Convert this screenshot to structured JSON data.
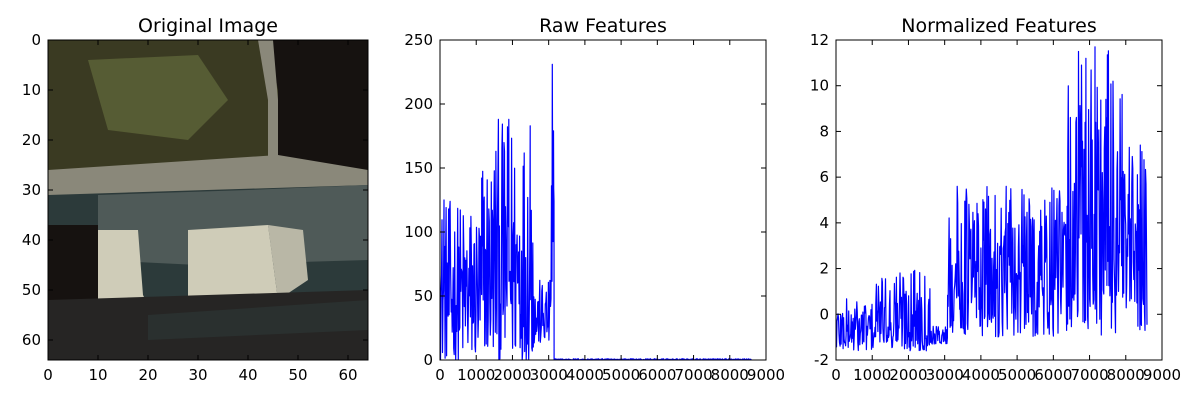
{
  "chart_data": [
    {
      "type": "image",
      "title": "Original Image",
      "xlim": [
        0,
        64
      ],
      "ylim": [
        64,
        0
      ],
      "xticks": [
        0,
        10,
        20,
        30,
        40,
        50,
        60
      ],
      "yticks": [
        0,
        10,
        20,
        30,
        40,
        50,
        60
      ],
      "image_regions": [
        {
          "name": "foliage",
          "color": "#3a3a22"
        },
        {
          "name": "foliage-highlight",
          "color": "#565c34"
        },
        {
          "name": "dark-background",
          "color": "#161210"
        },
        {
          "name": "pole-left",
          "color": "#8a887a"
        },
        {
          "name": "car-body",
          "color": "#2c3a3a"
        },
        {
          "name": "car-roof-edge",
          "color": "#4f5a58"
        },
        {
          "name": "light-panel",
          "color": "#cfccb8"
        },
        {
          "name": "light-panel-right",
          "color": "#b9b7a6"
        },
        {
          "name": "road",
          "color": "#262524"
        },
        {
          "name": "bumper",
          "color": "#2a302f"
        }
      ]
    },
    {
      "type": "line",
      "title": "Raw Features",
      "xlim": [
        0,
        9000
      ],
      "ylim": [
        0,
        250
      ],
      "xticks": [
        0,
        1000,
        2000,
        3000,
        4000,
        5000,
        6000,
        7000,
        8000,
        9000
      ],
      "yticks": [
        0,
        50,
        100,
        150,
        200,
        250
      ],
      "color": "#0000ff",
      "series_profile": [
        {
          "x_range": [
            0,
            1150
          ],
          "min": 0,
          "max": 125
        },
        {
          "x_range": [
            1150,
            1500
          ],
          "min": 5,
          "max": 165
        },
        {
          "x_range": [
            1500,
            2100
          ],
          "min": 0,
          "max": 188
        },
        {
          "x_range": [
            2100,
            2600
          ],
          "min": 0,
          "max": 183
        },
        {
          "x_range": [
            2600,
            3050
          ],
          "min": 12,
          "max": 63
        },
        {
          "x_range": [
            3050,
            3150
          ],
          "min": 0,
          "max": 231
        },
        {
          "x_range": [
            3150,
            8600
          ],
          "min": 0,
          "max": 1
        }
      ],
      "peaks": [
        {
          "x": 110,
          "y": 125
        },
        {
          "x": 1900,
          "y": 188
        },
        {
          "x": 2490,
          "y": 183
        },
        {
          "x": 3100,
          "y": 231
        },
        {
          "x": 3140,
          "y": 134
        }
      ]
    },
    {
      "type": "line",
      "title": "Normalized Features",
      "xlim": [
        0,
        9000
      ],
      "ylim": [
        -2,
        12
      ],
      "xticks": [
        0,
        1000,
        2000,
        3000,
        4000,
        5000,
        6000,
        7000,
        8000,
        9000
      ],
      "yticks": [
        -2,
        0,
        2,
        4,
        6,
        8,
        10,
        12
      ],
      "color": "#0000ff",
      "series_profile": [
        {
          "x_range": [
            0,
            1100
          ],
          "min": -1.6,
          "max": 0.7
        },
        {
          "x_range": [
            1100,
            1500
          ],
          "min": -1.3,
          "max": 1.6
        },
        {
          "x_range": [
            1500,
            2600
          ],
          "min": -1.6,
          "max": 2.2
        },
        {
          "x_range": [
            2600,
            3080
          ],
          "min": -1.3,
          "max": -0.5
        },
        {
          "x_range": [
            3080,
            4000
          ],
          "min": -0.9,
          "max": 5.8
        },
        {
          "x_range": [
            4000,
            6400
          ],
          "min": -1.0,
          "max": 5.6
        },
        {
          "x_range": [
            6400,
            7900
          ],
          "min": -1.0,
          "max": 11.7
        },
        {
          "x_range": [
            7900,
            8600
          ],
          "min": -1.0,
          "max": 7.4
        }
      ],
      "peaks": [
        {
          "x": 4700,
          "y": 5.6
        },
        {
          "x": 6900,
          "y": 11.2
        },
        {
          "x": 7150,
          "y": 11.7
        },
        {
          "x": 7450,
          "y": 9.4
        },
        {
          "x": 8400,
          "y": 7.4
        }
      ]
    }
  ]
}
